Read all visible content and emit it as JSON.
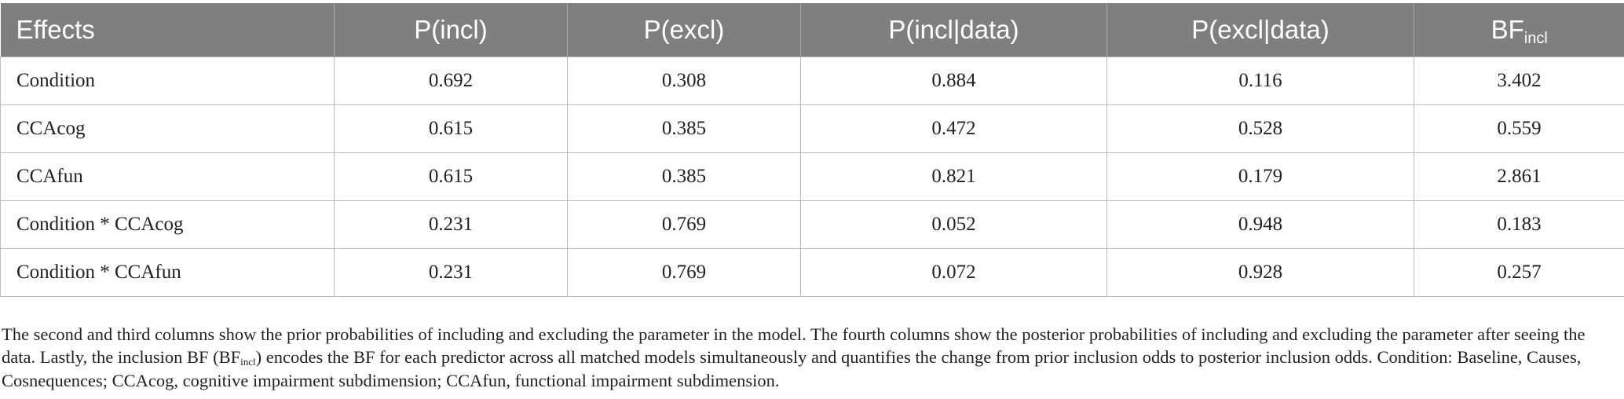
{
  "table": {
    "headers": {
      "effects": "Effects",
      "p_incl": "P(incl)",
      "p_excl": "P(excl)",
      "p_incl_data": "P(incl|data)",
      "p_excl_data": "P(excl|data)",
      "bf_main": "BF",
      "bf_sub": "incl"
    },
    "rows": [
      {
        "effect": "Condition",
        "p_incl": "0.692",
        "p_excl": "0.308",
        "p_incl_data": "0.884",
        "p_excl_data": "0.116",
        "bf_incl": "3.402"
      },
      {
        "effect": "CCAcog",
        "p_incl": "0.615",
        "p_excl": "0.385",
        "p_incl_data": "0.472",
        "p_excl_data": "0.528",
        "bf_incl": "0.559"
      },
      {
        "effect": "CCAfun",
        "p_incl": "0.615",
        "p_excl": "0.385",
        "p_incl_data": "0.821",
        "p_excl_data": "0.179",
        "bf_incl": "2.861"
      },
      {
        "effect": "Condition * CCAcog",
        "p_incl": "0.231",
        "p_excl": "0.769",
        "p_incl_data": "0.052",
        "p_excl_data": "0.948",
        "bf_incl": "0.183"
      },
      {
        "effect": "Condition * CCAfun",
        "p_incl": "0.231",
        "p_excl": "0.769",
        "p_incl_data": "0.072",
        "p_excl_data": "0.928",
        "bf_incl": "0.257"
      }
    ]
  },
  "footnote": {
    "part1": "The second and third columns show the prior probabilities of including and excluding the parameter in the model. The fourth columns show the posterior probabilities of including and excluding the parameter after seeing the data. Lastly, the inclusion BF (BF",
    "sub": "incl",
    "part2": ") encodes the BF for each predictor across all matched models simultaneously and quantifies the change from prior inclusion odds to posterior inclusion odds. Condition: Baseline, Causes, Cosnequences; CCAcog, cognitive impairment subdimension; CCAfun, functional impairment subdimension."
  }
}
